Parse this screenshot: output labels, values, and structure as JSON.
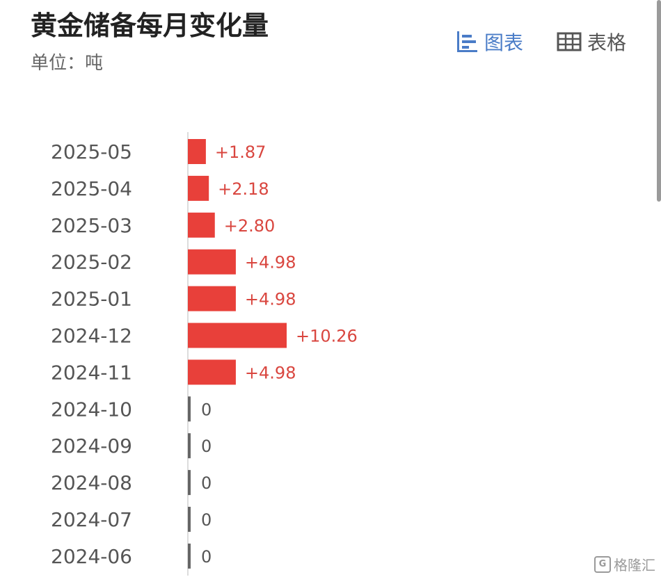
{
  "header": {
    "title": "黄金储备每月变化量",
    "unit": "单位：吨"
  },
  "view_toggle": {
    "chart_label": "图表",
    "table_label": "表格",
    "active": "chart",
    "chart_icon": "bar-chart-icon",
    "table_icon": "table-grid-icon"
  },
  "watermark": {
    "text": "格隆汇",
    "icon": "g-logo-icon"
  },
  "colors": {
    "bar": "#e8403a",
    "zero_bar": "#666666",
    "label_positive": "#d9463f",
    "label_zero": "#555555",
    "category": "#555555",
    "axis": "#d0d0d0",
    "active_toggle": "#4a7cc7"
  },
  "chart_data": {
    "type": "bar",
    "orientation": "horizontal",
    "categories": [
      "2025-05",
      "2025-04",
      "2025-03",
      "2025-02",
      "2025-01",
      "2024-12",
      "2024-11",
      "2024-10",
      "2024-09",
      "2024-08",
      "2024-07",
      "2024-06"
    ],
    "values": [
      1.87,
      2.18,
      2.8,
      4.98,
      4.98,
      10.26,
      4.98,
      0,
      0,
      0,
      0,
      0
    ],
    "data_labels": [
      "+1.87",
      "+2.18",
      "+2.80",
      "+4.98",
      "+4.98",
      "+10.26",
      "+4.98",
      "0",
      "0",
      "0",
      "0",
      "0"
    ],
    "title": "黄金储备每月变化量",
    "unit": "吨",
    "xlim": [
      0,
      10.26
    ],
    "grid": false,
    "legend": "none"
  }
}
